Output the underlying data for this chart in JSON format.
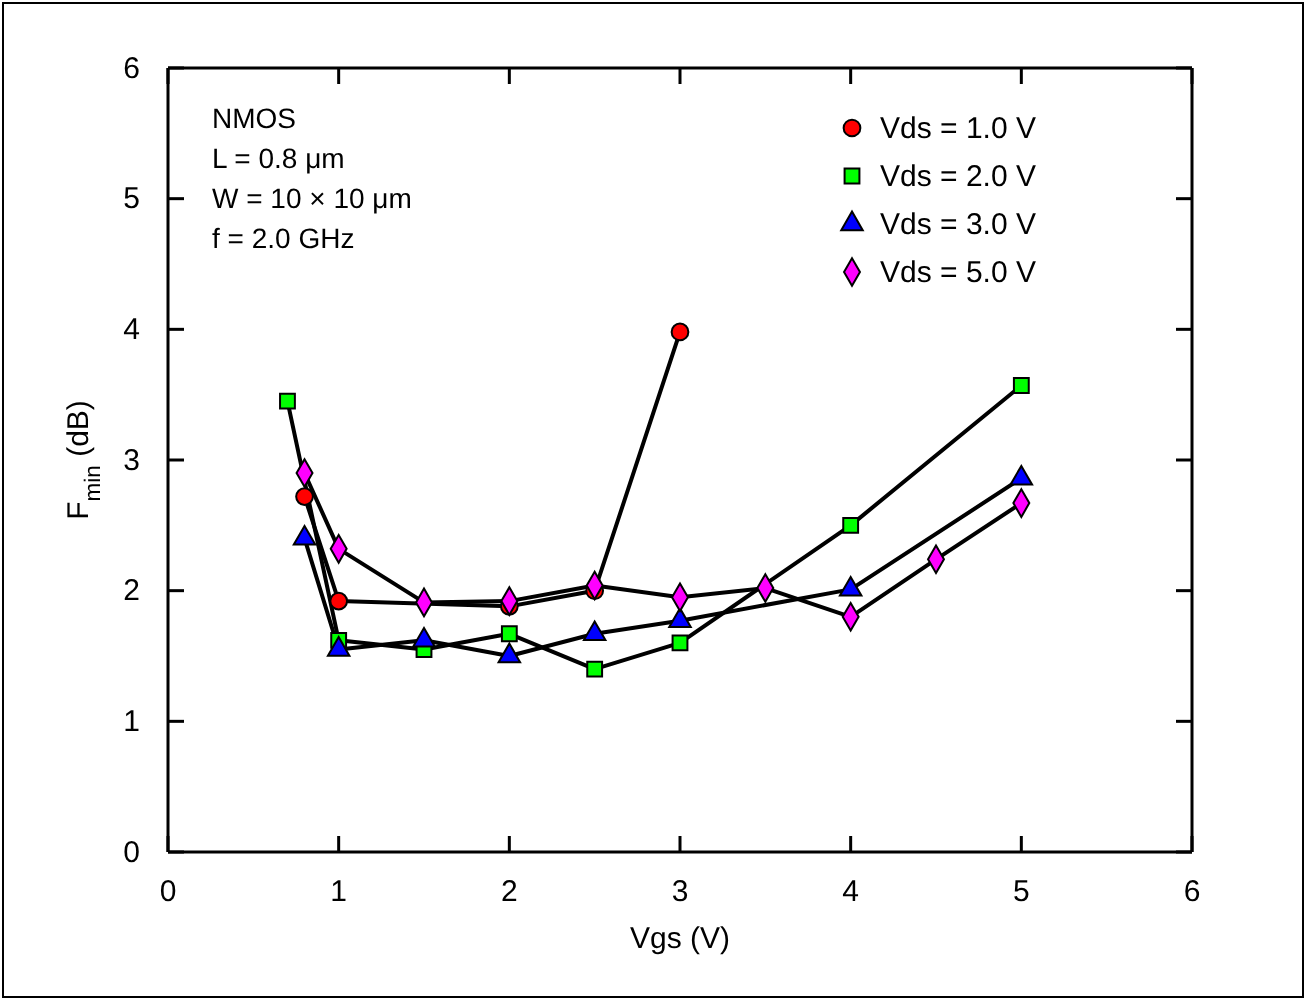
{
  "chart_data": {
    "type": "line",
    "xlabel": "Vgs (V)",
    "ylabel": "F$_{min}$ (dB)",
    "xlim": [
      0,
      6
    ],
    "ylim": [
      0,
      6
    ],
    "xticks": [
      0,
      1,
      2,
      3,
      4,
      5,
      6
    ],
    "yticks": [
      0,
      1,
      2,
      3,
      4,
      5,
      6
    ],
    "grid": false,
    "legend": "top right",
    "annotations": [
      "NMOS",
      "L = 0.8 μm",
      "W = 10 × 10 μm",
      "f = 2.0 GHz"
    ],
    "series": [
      {
        "name": "Vds = 1.0 V",
        "color": "#ff0000",
        "marker": "circle",
        "x": [
          0.8,
          1,
          2,
          2.5,
          3
        ],
        "values": [
          2.72,
          1.92,
          1.88,
          2.0,
          3.98
        ]
      },
      {
        "name": "Vds = 2.0 V",
        "color": "#00ff00",
        "marker": "square",
        "x": [
          0.7,
          1,
          1.5,
          2,
          2.5,
          3,
          4,
          5
        ],
        "values": [
          3.45,
          1.62,
          1.55,
          1.67,
          1.4,
          1.6,
          2.5,
          3.57
        ]
      },
      {
        "name": "Vds = 3.0 V",
        "color": "#0000ff",
        "marker": "triangle",
        "x": [
          0.8,
          1,
          1.5,
          2,
          2.5,
          3,
          4,
          5
        ],
        "values": [
          2.4,
          1.55,
          1.62,
          1.5,
          1.67,
          1.77,
          2.01,
          2.86
        ]
      },
      {
        "name": "Vds = 5.0 V",
        "color": "#ff00ff",
        "marker": "diamond",
        "x": [
          0.8,
          1,
          1.5,
          2,
          2.5,
          3,
          3.5,
          4,
          4.5,
          5
        ],
        "values": [
          2.9,
          2.32,
          1.91,
          1.92,
          2.04,
          1.95,
          2.02,
          1.8,
          2.24,
          2.67
        ]
      }
    ]
  }
}
